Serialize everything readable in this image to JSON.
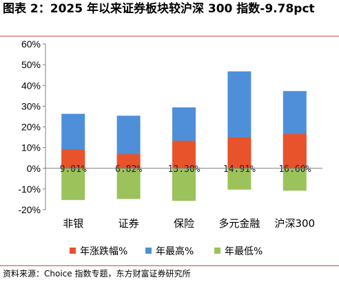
{
  "title": "图表 2：2025 年以来证券板块较沪深 300 指数-9.78pct",
  "source": "资料来源：Choice 指数专题，东方财富证券研究所",
  "chart_data": {
    "type": "bar",
    "categories": [
      "非银",
      "证券",
      "保险",
      "多元金融",
      "沪深300"
    ],
    "series": [
      {
        "name": "年涨跌幅%",
        "color": "#e8532b",
        "values": [
          9.01,
          6.82,
          13.3,
          14.91,
          16.6
        ],
        "labels": [
          "9.01%",
          "6.82%",
          "13.30%",
          "14.91%",
          "16.60%"
        ]
      },
      {
        "name": "年最高%",
        "color": "#4f8fd9",
        "values": [
          26.3,
          25.4,
          29.4,
          46.8,
          37.3
        ]
      },
      {
        "name": "年最低%",
        "color": "#9bc25b",
        "values": [
          -15.3,
          -14.8,
          -15.7,
          -10.3,
          -10.8
        ]
      }
    ],
    "ylim": [
      -20,
      60
    ],
    "yticks": [
      "-20%",
      "-10%",
      "0%",
      "10%",
      "20%",
      "30%",
      "40%",
      "50%",
      "60%"
    ],
    "grid": false,
    "legend": "bottom"
  }
}
